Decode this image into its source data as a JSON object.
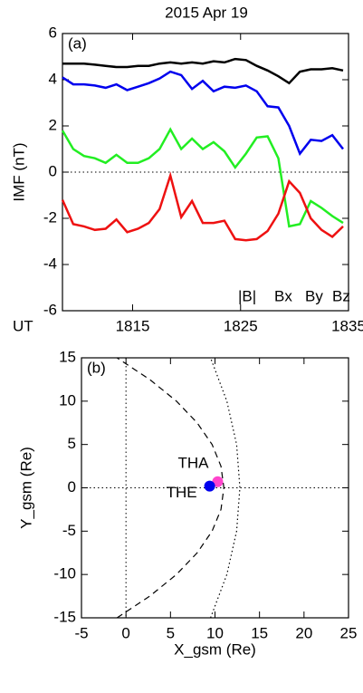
{
  "chart_data": [
    {
      "type": "line",
      "title": "2015 Apr 19",
      "annotation": "(a)",
      "ylabel": "IMF (nT)",
      "xlabel": "UT",
      "x": [
        1808.5,
        1809.5,
        1810.5,
        1811.5,
        1812.5,
        1813.5,
        1814.5,
        1815.5,
        1816.5,
        1817.5,
        1818.5,
        1819.5,
        1820.5,
        1821.5,
        1822.5,
        1823.5,
        1824.5,
        1825.5,
        1826.5,
        1827.5,
        1828.5,
        1829.5,
        1830.5,
        1831.5,
        1832.5,
        1833.5,
        1834.5
      ],
      "xlim": [
        1808.5,
        1835
      ],
      "xticks": [
        1815,
        1825,
        1835
      ],
      "ylim": [
        -6,
        6
      ],
      "yticks": [
        -6,
        -4,
        -2,
        0,
        2,
        4,
        6
      ],
      "zero_line": "dotted",
      "series": [
        {
          "name": "|B|",
          "color": "#000000",
          "values": [
            4.7,
            4.7,
            4.7,
            4.65,
            4.6,
            4.55,
            4.55,
            4.6,
            4.6,
            4.7,
            4.75,
            4.7,
            4.75,
            4.7,
            4.8,
            4.75,
            4.9,
            4.85,
            4.6,
            4.4,
            4.15,
            3.85,
            4.35,
            4.45,
            4.45,
            4.5,
            4.4
          ]
        },
        {
          "name": "Bx",
          "color": "#0000ee",
          "values": [
            4.1,
            3.8,
            3.8,
            3.75,
            3.65,
            3.8,
            3.55,
            3.7,
            3.85,
            4.05,
            4.35,
            4.2,
            3.6,
            3.95,
            3.5,
            3.7,
            3.65,
            3.75,
            3.5,
            2.85,
            2.8,
            2.0,
            0.8,
            1.4,
            1.35,
            1.6,
            1.0
          ]
        },
        {
          "name": "By",
          "color": "#22ee22",
          "values": [
            1.8,
            1.0,
            0.7,
            0.6,
            0.4,
            0.75,
            0.4,
            0.4,
            0.6,
            1.0,
            1.85,
            1.0,
            1.45,
            1.0,
            1.3,
            0.9,
            0.2,
            0.8,
            1.5,
            1.55,
            0.6,
            -2.35,
            -2.25,
            -1.25,
            -1.55,
            -1.9,
            -2.2
          ]
        },
        {
          "name": "Bz",
          "color": "#ee1111",
          "values": [
            -1.2,
            -2.25,
            -2.35,
            -2.5,
            -2.45,
            -2.05,
            -2.6,
            -2.45,
            -2.2,
            -1.6,
            -0.15,
            -1.95,
            -1.25,
            -2.2,
            -2.2,
            -2.1,
            -2.9,
            -2.95,
            -2.9,
            -2.55,
            -1.8,
            -0.4,
            -0.9,
            -2.0,
            -2.5,
            -2.8,
            -2.35
          ]
        }
      ]
    },
    {
      "type": "scatter",
      "annotation": "(b)",
      "xlabel": "X_gsm (Re)",
      "ylabel": "Y_gsm (Re)",
      "xlim": [
        -5,
        25
      ],
      "xticks": [
        -5,
        0,
        5,
        10,
        15,
        20,
        25
      ],
      "ylim": [
        -15,
        15
      ],
      "yticks": [
        -15,
        -10,
        -5,
        0,
        5,
        10,
        15
      ],
      "zero_line": "dotted",
      "curves": [
        {
          "dash": "dashed",
          "x": [
            -1,
            2.67,
            5.67,
            8,
            9.67,
            10.67,
            11,
            10.67,
            9.67,
            8,
            5.67,
            2.67,
            -1
          ],
          "y": [
            -15,
            -12.5,
            -10,
            -7.5,
            -5,
            -2.5,
            0,
            2.5,
            5,
            7.5,
            10,
            12.5,
            15
          ]
        },
        {
          "dash": "dotted",
          "x": [
            9.5,
            11.33,
            12.43,
            12.8,
            12.43,
            11.33,
            9.5
          ],
          "y": [
            -15,
            -10,
            -5,
            0,
            5,
            10,
            15
          ]
        }
      ],
      "points": [
        {
          "name": "THA",
          "color": "#ff44cc",
          "x": 10.3,
          "y": 0.7
        },
        {
          "name": "THE",
          "color": "#0000ee",
          "x": 9.4,
          "y": 0.2
        }
      ]
    }
  ]
}
